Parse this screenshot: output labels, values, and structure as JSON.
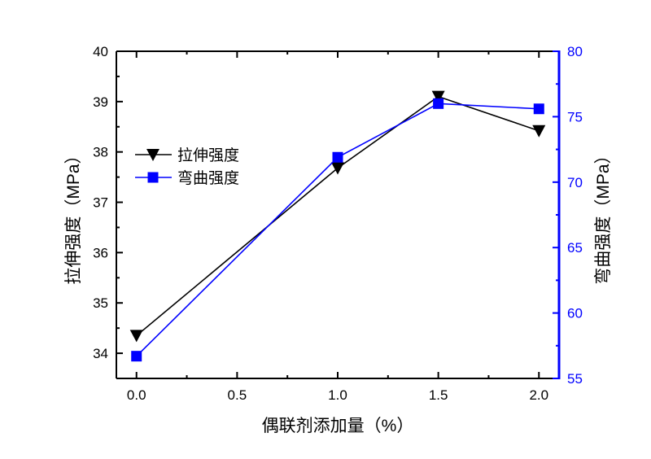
{
  "chart_data": {
    "type": "line",
    "xlabel": "偶联剂添加量（%）",
    "ylabel_left": "拉伸强度（MPa）",
    "ylabel_right": "弯曲强度（MPa）",
    "xlim": [
      -0.1,
      2.1
    ],
    "ylim_left": [
      33.5,
      40
    ],
    "ylim_right": [
      55,
      80
    ],
    "x_ticks": [
      "0.0",
      "0.5",
      "1.0",
      "1.5",
      "2.0"
    ],
    "y_left_ticks": [
      "34",
      "35",
      "36",
      "37",
      "38",
      "39",
      "40"
    ],
    "y_right_ticks": [
      "55",
      "60",
      "65",
      "70",
      "75",
      "80"
    ],
    "grid": false,
    "legend_position": "center-left",
    "x": [
      0.0,
      1.0,
      1.5,
      2.0
    ],
    "series": [
      {
        "name": "拉伸强度",
        "axis": "left",
        "marker": "triangle-down",
        "color": "#000000",
        "values": [
          34.35,
          37.68,
          39.1,
          38.42
        ]
      },
      {
        "name": "弯曲强度",
        "axis": "right",
        "marker": "square",
        "color": "#0000ff",
        "values": [
          56.7,
          71.9,
          76.0,
          75.6
        ]
      }
    ],
    "right_axis_color": "#0000ff"
  }
}
